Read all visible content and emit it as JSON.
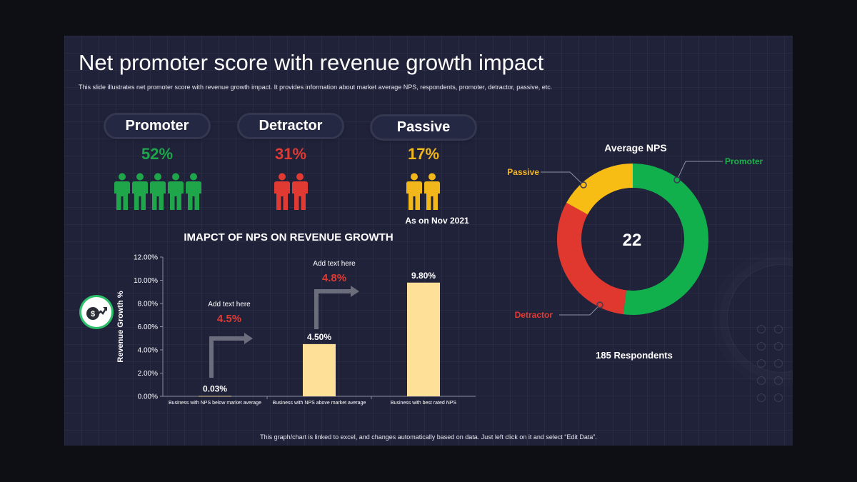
{
  "title": "Net promoter score with revenue growth impact",
  "subtitle": "This slide illustrates net promoter score with revenue growth impact. It provides information about market average NPS, respondents, promoter, detractor, passive, etc.",
  "footer": "This graph/chart is linked to excel,  and changes automatically based on data. Just left click on it and select “Edit Data”.",
  "segments": [
    {
      "label": "Promoter",
      "percent": "52%",
      "people": 5,
      "color": "#1fa64a"
    },
    {
      "label": "Detractor",
      "percent": "31%",
      "people": 2,
      "color": "#e03a32"
    },
    {
      "label": "Passive",
      "percent": "17%",
      "people": 2,
      "color": "#f2b71b"
    }
  ],
  "as_of": "As  on Nov 2021",
  "icons": {
    "person": "person-icon",
    "growth": "money-growth-icon"
  },
  "chart_data": [
    {
      "type": "bar",
      "title": "IMAPCT OF NPS ON REVENUE GROWTH",
      "categories": [
        "Business with NPS below market average",
        "Business with NPS above market average",
        "Business with best rated NPS"
      ],
      "values": [
        0.03,
        4.5,
        9.8
      ],
      "data_labels": [
        "0.03%",
        "4.50%",
        "9.80%"
      ],
      "xlabel": "",
      "ylabel": "Revenue Growth %",
      "ylim": [
        0,
        12
      ],
      "yticks": [
        "0.00%",
        "2.00%",
        "4.00%",
        "6.00%",
        "8.00%",
        "10.00%",
        "12.00%"
      ],
      "bar_color": "#ffe099",
      "grid": false,
      "annotations": [
        {
          "text": "Add text here",
          "value": "4.5%",
          "color": "#e03a32"
        },
        {
          "text": "Add text here",
          "value": "4.8%",
          "color": "#e03a32"
        }
      ]
    },
    {
      "type": "pie",
      "title": "Average NPS",
      "center_value": "22",
      "respondents": "185 Respondents",
      "labels": [
        "Promoter",
        "Detractor",
        "Passive"
      ],
      "values": [
        52,
        31,
        17
      ],
      "colors": [
        "#12b04c",
        "#e0372f",
        "#f7bd14"
      ],
      "label_colors": [
        "#22b14c",
        "#e43b32",
        "#f5b31c"
      ]
    }
  ]
}
